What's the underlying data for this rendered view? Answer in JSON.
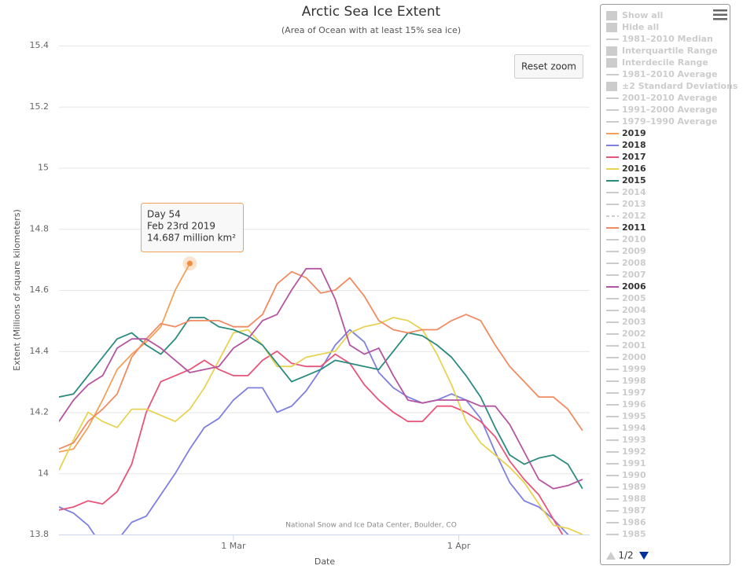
{
  "chart_data": {
    "type": "line",
    "title": "Arctic Sea Ice Extent",
    "subtitle": "(Area of Ocean with at least 15% sea ice)",
    "x_label": "Date",
    "y_label": "Extent (Millions of square kilometers)",
    "credit": "National Snow and Ice Data Center, Boulder, CO",
    "reset_button": "Reset zoom",
    "tooltip": {
      "lines": [
        "Day 54",
        "Feb 23rd 2019",
        "14.687 million km²"
      ]
    },
    "xlim": [
      36,
      109
    ],
    "ylim": [
      13.8,
      15.4
    ],
    "xticks": [
      {
        "value": 60,
        "label": "1 Mar"
      },
      {
        "value": 91,
        "label": "1 Apr"
      }
    ],
    "yticks": [
      13.8,
      14,
      14.2,
      14.4,
      14.6,
      14.8,
      15,
      15.2,
      15.4
    ],
    "grid": true,
    "legend": {
      "position": "right",
      "controls": [
        "Show all",
        "Hide all"
      ],
      "page": "1/2",
      "hidden_color": "#cccccc"
    },
    "x": [
      36,
      38,
      40,
      42,
      44,
      46,
      48,
      50,
      52,
      54,
      56,
      58,
      60,
      62,
      64,
      66,
      68,
      70,
      72,
      74,
      76,
      78,
      80,
      82,
      84,
      86,
      88,
      90,
      92,
      94,
      96,
      98,
      100,
      102,
      104,
      106,
      108
    ],
    "series": [
      {
        "name": "1981–2010 Median",
        "symbol": "line",
        "visible": false
      },
      {
        "name": "Interquartile Range",
        "symbol": "rect",
        "visible": false
      },
      {
        "name": "Interdecile Range",
        "symbol": "rect",
        "visible": false
      },
      {
        "name": "1981–2010 Average",
        "symbol": "line",
        "visible": false
      },
      {
        "name": "±2 Standard Deviations",
        "symbol": "rect",
        "visible": false
      },
      {
        "name": "2001–2010 Average",
        "symbol": "line",
        "visible": false
      },
      {
        "name": "1991–2000 Average",
        "symbol": "line",
        "visible": false
      },
      {
        "name": "1979–1990 Average",
        "symbol": "line",
        "visible": false
      },
      {
        "name": "2019",
        "symbol": "line",
        "visible": true,
        "color": "#f3a15a",
        "values": [
          14.07,
          14.08,
          14.15,
          14.24,
          14.34,
          14.39,
          14.43,
          14.48,
          14.6,
          14.687,
          null,
          null,
          null,
          null,
          null,
          null,
          null,
          null,
          null,
          null,
          null,
          null,
          null,
          null,
          null,
          null,
          null,
          null,
          null,
          null,
          null,
          null,
          null,
          null,
          null,
          null,
          null
        ]
      },
      {
        "name": "2018",
        "symbol": "line",
        "visible": true,
        "color": "#7f7fe0",
        "values": [
          13.89,
          13.87,
          13.83,
          13.76,
          13.78,
          13.84,
          13.86,
          13.93,
          14.0,
          14.08,
          14.15,
          14.18,
          14.24,
          14.28,
          14.28,
          14.2,
          14.22,
          14.27,
          14.34,
          14.42,
          14.47,
          14.43,
          14.33,
          14.28,
          14.25,
          14.23,
          14.24,
          14.26,
          14.24,
          14.18,
          14.07,
          13.97,
          13.91,
          13.89,
          13.85,
          13.8,
          13.76
        ]
      },
      {
        "name": "2017",
        "symbol": "line",
        "visible": true,
        "color": "#e8557a",
        "values": [
          13.88,
          13.89,
          13.91,
          13.9,
          13.94,
          14.03,
          14.2,
          14.3,
          14.32,
          14.34,
          14.37,
          14.34,
          14.32,
          14.32,
          14.37,
          14.4,
          14.36,
          14.35,
          14.35,
          14.39,
          14.36,
          14.29,
          14.24,
          14.2,
          14.17,
          14.17,
          14.22,
          14.22,
          14.2,
          14.17,
          14.12,
          14.04,
          13.98,
          13.93,
          13.85,
          13.77,
          13.7
        ]
      },
      {
        "name": "2016",
        "symbol": "line",
        "visible": true,
        "color": "#e6d354",
        "values": [
          14.01,
          14.11,
          14.2,
          14.17,
          14.15,
          14.21,
          14.21,
          14.19,
          14.17,
          14.21,
          14.28,
          14.37,
          14.46,
          14.47,
          14.42,
          14.35,
          14.35,
          14.38,
          14.39,
          14.4,
          14.46,
          14.48,
          14.49,
          14.51,
          14.5,
          14.47,
          14.39,
          14.29,
          14.17,
          14.1,
          14.06,
          14.02,
          13.97,
          13.9,
          13.83,
          13.82,
          13.8
        ]
      },
      {
        "name": "2015",
        "symbol": "line",
        "visible": true,
        "color": "#2a8b7e",
        "values": [
          14.25,
          14.26,
          14.32,
          14.38,
          14.44,
          14.46,
          14.42,
          14.39,
          14.44,
          14.51,
          14.51,
          14.48,
          14.47,
          14.45,
          14.42,
          14.36,
          14.3,
          14.32,
          14.34,
          14.37,
          14.36,
          14.35,
          14.34,
          14.4,
          14.46,
          14.45,
          14.42,
          14.38,
          14.32,
          14.25,
          14.15,
          14.06,
          14.03,
          14.05,
          14.06,
          14.03,
          13.95
        ]
      },
      {
        "name": "2014",
        "symbol": "line",
        "visible": false
      },
      {
        "name": "2013",
        "symbol": "line",
        "visible": false
      },
      {
        "name": "2012",
        "symbol": "line",
        "visible": false,
        "dash": true
      },
      {
        "name": "2011",
        "symbol": "line",
        "visible": true,
        "color": "#f08b63",
        "values": [
          14.08,
          14.1,
          14.17,
          14.21,
          14.26,
          14.38,
          14.44,
          14.49,
          14.48,
          14.5,
          14.5,
          14.5,
          14.48,
          14.48,
          14.52,
          14.62,
          14.66,
          14.64,
          14.59,
          14.6,
          14.64,
          14.58,
          14.5,
          14.47,
          14.46,
          14.47,
          14.47,
          14.5,
          14.52,
          14.5,
          14.42,
          14.35,
          14.3,
          14.25,
          14.25,
          14.21,
          14.14
        ]
      },
      {
        "name": "2010",
        "symbol": "line",
        "visible": false
      },
      {
        "name": "2009",
        "symbol": "line",
        "visible": false
      },
      {
        "name": "2008",
        "symbol": "line",
        "visible": false
      },
      {
        "name": "2007",
        "symbol": "line",
        "visible": false
      },
      {
        "name": "2006",
        "symbol": "line",
        "visible": true,
        "color": "#b3559f",
        "values": [
          14.17,
          14.24,
          14.29,
          14.32,
          14.41,
          14.44,
          14.44,
          14.41,
          14.37,
          14.33,
          14.34,
          14.35,
          14.41,
          14.44,
          14.5,
          14.52,
          14.6,
          14.67,
          14.67,
          14.57,
          14.42,
          14.39,
          14.41,
          14.32,
          14.24,
          14.23,
          14.24,
          14.24,
          14.24,
          14.22,
          14.22,
          14.16,
          14.07,
          13.98,
          13.95,
          13.96,
          13.98
        ]
      },
      {
        "name": "2005",
        "symbol": "line",
        "visible": false
      },
      {
        "name": "2004",
        "symbol": "line",
        "visible": false
      },
      {
        "name": "2003",
        "symbol": "line",
        "visible": false
      },
      {
        "name": "2002",
        "symbol": "line",
        "visible": false
      },
      {
        "name": "2001",
        "symbol": "line",
        "visible": false
      },
      {
        "name": "2000",
        "symbol": "line",
        "visible": false
      },
      {
        "name": "1999",
        "symbol": "line",
        "visible": false
      },
      {
        "name": "1998",
        "symbol": "line",
        "visible": false
      },
      {
        "name": "1997",
        "symbol": "line",
        "visible": false
      },
      {
        "name": "1996",
        "symbol": "line",
        "visible": false
      },
      {
        "name": "1995",
        "symbol": "line",
        "visible": false
      },
      {
        "name": "1994",
        "symbol": "line",
        "visible": false
      },
      {
        "name": "1993",
        "symbol": "line",
        "visible": false
      },
      {
        "name": "1992",
        "symbol": "line",
        "visible": false
      },
      {
        "name": "1991",
        "symbol": "line",
        "visible": false
      },
      {
        "name": "1990",
        "symbol": "line",
        "visible": false
      },
      {
        "name": "1989",
        "symbol": "line",
        "visible": false
      },
      {
        "name": "1988",
        "symbol": "line",
        "visible": false
      },
      {
        "name": "1987",
        "symbol": "line",
        "visible": false
      },
      {
        "name": "1986",
        "symbol": "line",
        "visible": false
      },
      {
        "name": "1985",
        "symbol": "line",
        "visible": false
      }
    ]
  }
}
